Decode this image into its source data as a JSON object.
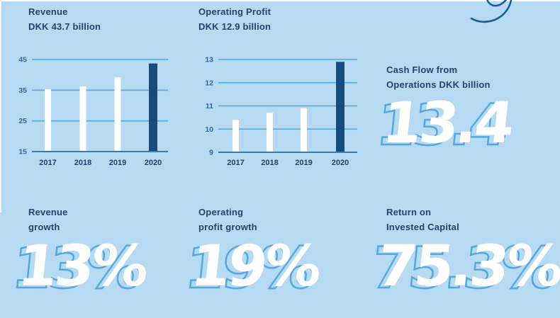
{
  "colors": {
    "background": "#b6daf2",
    "gridline": "#56a7db",
    "axis": "#3b79a9",
    "accent_dark": "#16497c",
    "bar_white": "#ffffff",
    "label_text": "#21456b",
    "ytick_text": "#33659a",
    "xtick_text": "#1f4369",
    "number_fill": "#ffffff",
    "number_outline": "#54a8de",
    "swoosh_stroke": "#1d5c9b"
  },
  "chart_data": [
    {
      "type": "bar",
      "title": "Revenue DKK 43.7 billion",
      "title_line1": "Revenue",
      "title_line2": "DKK 43.7 billion",
      "categories": [
        "2017",
        "2018",
        "2019",
        "2020"
      ],
      "values": [
        35.3,
        36.2,
        39.2,
        43.7
      ],
      "ylim": [
        15,
        45
      ],
      "yticks": [
        15,
        25,
        35,
        45
      ],
      "bar_colors": [
        "#ffffff",
        "#ffffff",
        "#ffffff",
        "#16497c"
      ],
      "grid": true,
      "xlabel": "",
      "ylabel": "",
      "legend": false
    },
    {
      "type": "bar",
      "title": "Operating Profit DKK 12.9 billion",
      "title_line1": "Operating Profit",
      "title_line2": "DKK 12.9 billion",
      "categories": [
        "2017",
        "2018",
        "2019",
        "2020"
      ],
      "values": [
        10.4,
        10.7,
        10.9,
        12.9
      ],
      "ylim": [
        9,
        13
      ],
      "yticks": [
        9,
        10,
        11,
        12,
        13
      ],
      "bar_colors": [
        "#ffffff",
        "#ffffff",
        "#ffffff",
        "#16497c"
      ],
      "grid": true,
      "xlabel": "",
      "ylabel": "",
      "legend": false
    }
  ],
  "stats": [
    {
      "id": "cash-flow",
      "label_line1": "Cash Flow from",
      "label_line2": "Operations DKK billion",
      "value": "13.4"
    },
    {
      "id": "revenue-growth",
      "label_line1": "Revenue",
      "label_line2": "growth",
      "value": "13%"
    },
    {
      "id": "operating-profit-growth",
      "label_line1": "Operating",
      "label_line2": "profit growth",
      "value": "19%"
    },
    {
      "id": "return-on-invested-capital",
      "label_line1": "Return on",
      "label_line2": "Invested Capital",
      "value": "75.3%"
    }
  ]
}
